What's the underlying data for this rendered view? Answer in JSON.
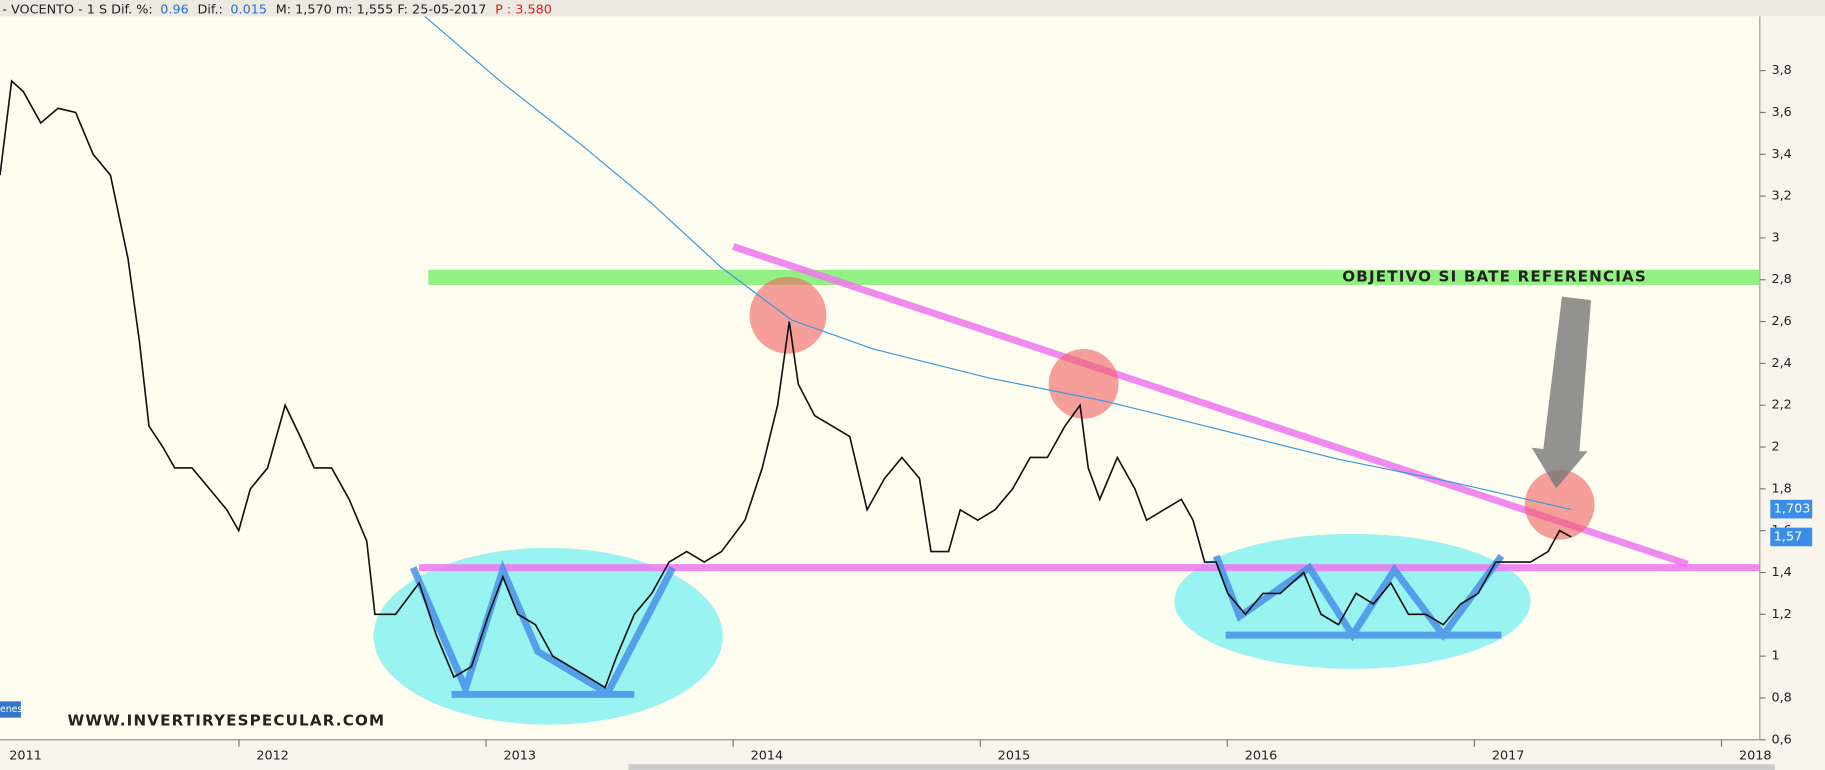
{
  "header": {
    "name": "- VOCENTO -  1 S  Dif. %:",
    "pct": "0.96",
    "dif_label": "Dif.:",
    "dif": "0.015",
    "range": "M: 1,570  m: 1,555  F: 25-05-2017",
    "p": "P : 3.580"
  },
  "chart_data": {
    "type": "line",
    "annotations": [
      "OBJETIVO SI BATE REFERENCIAS",
      "WWW.INVERTIRYESPECULAR.COM",
      "enes"
    ],
    "xlim": [
      2011.033,
      2018.155
    ],
    "xticks": [
      2011,
      2012,
      2013,
      2014,
      2015,
      2016,
      2017,
      2018
    ],
    "ylim": [
      0.6,
      4.06
    ],
    "yticks": [
      {
        "value": 0.6,
        "label": "0,6"
      },
      {
        "value": 0.8,
        "label": "0,8"
      },
      1,
      {
        "value": 1.2,
        "label": "1,2"
      },
      {
        "value": 1.4,
        "label": "1,4"
      },
      {
        "value": 1.6,
        "label": "1,6"
      },
      {
        "value": 1.8,
        "label": "1,8"
      },
      2,
      {
        "value": 2.2,
        "label": "2,2"
      },
      {
        "value": 2.4,
        "label": "2,4"
      },
      {
        "value": 2.6,
        "label": "2,6"
      },
      {
        "value": 2.8,
        "label": "2,8"
      },
      3,
      {
        "value": 3.2,
        "label": "3,2"
      },
      {
        "value": 3.4,
        "label": "3,4"
      },
      {
        "value": 3.6,
        "label": "3,6"
      },
      {
        "value": 3.8,
        "label": "3,8"
      }
    ],
    "price_labels": [
      {
        "value": 1.703,
        "label": "1,703"
      },
      {
        "value": 1.57,
        "label": "1,57"
      }
    ],
    "series": [
      {
        "color": "#111111",
        "x": [
          2011.033,
          2011.08,
          2011.127,
          2011.198,
          2011.268,
          2011.339,
          2011.41,
          2011.48,
          2011.551,
          2011.598,
          2011.636,
          2011.692,
          2011.74,
          2011.81,
          2011.881,
          2011.951,
          2011.999,
          2012.046,
          2012.116,
          2012.187,
          2012.248,
          2012.305,
          2012.375,
          2012.446,
          2012.517,
          2012.55,
          2012.634,
          2012.729,
          2012.799,
          2012.87,
          2012.941,
          2013.011,
          2013.068,
          2013.129,
          2013.2,
          2013.27,
          2013.341,
          2013.412,
          2013.482,
          2013.529,
          2013.6,
          2013.671,
          2013.741,
          2013.812,
          2013.883,
          2013.953,
          2014.048,
          2014.118,
          2014.18,
          2014.227,
          2014.264,
          2014.33,
          2014.401,
          2014.472,
          2014.542,
          2014.613,
          2014.683,
          2014.754,
          2014.801,
          2014.872,
          2014.919,
          2014.99,
          2015.06,
          2015.131,
          2015.202,
          2015.272,
          2015.343,
          2015.404,
          2015.437,
          2015.484,
          2015.555,
          2015.626,
          2015.673,
          2015.743,
          2015.814,
          2015.861,
          2015.908,
          2015.955,
          2016.002,
          2016.073,
          2016.144,
          2016.214,
          2016.309,
          2016.379,
          2016.45,
          2016.521,
          2016.591,
          2016.662,
          2016.733,
          2016.803,
          2016.874,
          2016.945,
          2017.015,
          2017.086,
          2017.156,
          2017.227,
          2017.298,
          2017.345,
          2017.392
        ],
        "values": [
          3.3,
          3.75,
          3.7,
          3.55,
          3.62,
          3.6,
          3.4,
          3.3,
          2.9,
          2.5,
          2.1,
          2.0,
          1.9,
          1.9,
          1.8,
          1.7,
          1.6,
          1.8,
          1.9,
          2.2,
          2.05,
          1.9,
          1.9,
          1.75,
          1.55,
          1.2,
          1.2,
          1.35,
          1.1,
          0.9,
          0.95,
          1.2,
          1.38,
          1.2,
          1.15,
          1.0,
          0.95,
          0.9,
          0.85,
          1.0,
          1.2,
          1.3,
          1.45,
          1.5,
          1.45,
          1.5,
          1.65,
          1.9,
          2.2,
          2.6,
          2.3,
          2.15,
          2.1,
          2.05,
          1.7,
          1.85,
          1.95,
          1.85,
          1.5,
          1.5,
          1.7,
          1.65,
          1.7,
          1.8,
          1.95,
          1.95,
          2.1,
          2.2,
          1.9,
          1.75,
          1.95,
          1.8,
          1.65,
          1.7,
          1.75,
          1.65,
          1.45,
          1.45,
          1.3,
          1.2,
          1.3,
          1.3,
          1.4,
          1.2,
          1.15,
          1.3,
          1.25,
          1.35,
          1.2,
          1.2,
          1.15,
          1.25,
          1.3,
          1.45,
          1.45,
          1.45,
          1.5,
          1.6,
          1.57
        ]
      },
      {
        "color": "#3399dd",
        "x": [
          2012.752,
          2013.058,
          2013.388,
          2013.671,
          2013.953,
          2014.236,
          2014.566,
          2015.037,
          2015.508,
          2015.979,
          2016.45,
          2016.921,
          2017.392
        ],
        "values": [
          4.06,
          3.749,
          3.443,
          3.165,
          2.858,
          2.608,
          2.469,
          2.33,
          2.219,
          2.08,
          1.941,
          1.829,
          1.701
        ]
      }
    ]
  }
}
